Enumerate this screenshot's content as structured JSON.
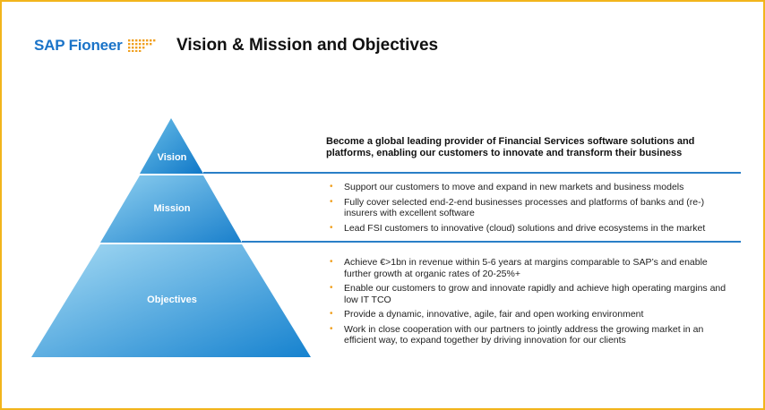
{
  "header": {
    "logo_text": "SAP Fioneer",
    "title": "Vision & Mission and Objectives"
  },
  "pyramid": {
    "levels": [
      "Vision",
      "Mission",
      "Objectives"
    ]
  },
  "vision": {
    "text": "Become a global leading provider of Financial Services software solutions and platforms, enabling our customers to innovate and transform their business"
  },
  "mission": {
    "items": [
      "Support our customers to move and expand in new markets and business models",
      "Fully cover selected end-2-end businesses processes and platforms of banks and (re-) insurers with excellent software",
      "Lead FSI customers to innovative (cloud) solutions and drive ecosystems in the market"
    ]
  },
  "objectives": {
    "items": [
      "Achieve €>1bn in revenue within 5-6 years at margins comparable to SAP’s and enable further growth at organic rates of 20-25%+",
      "Enable our customers to grow and innovate rapidly and achieve high operating margins and low IT TCO",
      "Provide a dynamic, innovative, agile, fair and open working environment",
      "Work in close cooperation with our partners to jointly address the growing market in an efficient way, to expand together by driving innovation for our clients"
    ]
  },
  "colors": {
    "frame": "#f2b51c",
    "brand_blue": "#1a73c8",
    "divider": "#2a7fc7",
    "bullet": "#f0a020"
  }
}
